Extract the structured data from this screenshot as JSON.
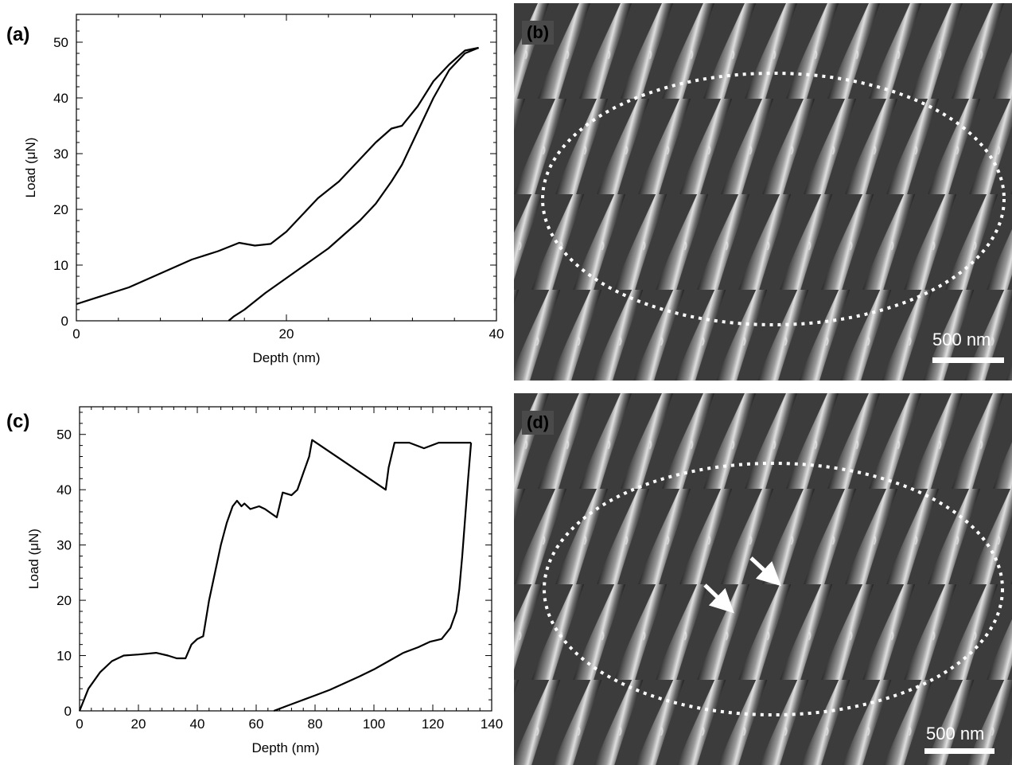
{
  "panels": {
    "a": "(a)",
    "b": "(b)",
    "c": "(c)",
    "d": "(d)"
  },
  "sem": {
    "b_scale": "500 nm",
    "d_scale": "500 nm"
  },
  "chart_data": [
    {
      "type": "line",
      "panel": "(a)",
      "xlabel": "Depth (nm)",
      "ylabel": "Load (μN)",
      "xlim": [
        0,
        40
      ],
      "ylim": [
        0,
        55
      ],
      "xticks": [
        0,
        20,
        40
      ],
      "yticks": [
        0,
        10,
        20,
        30,
        40,
        50
      ],
      "grid": false,
      "series": [
        {
          "x": [
            0,
            2,
            5,
            8,
            11,
            13.5,
            15.5,
            17,
            18.5,
            20,
            21.5,
            23,
            25,
            27,
            28.5,
            30,
            31,
            32.5,
            34,
            35.5,
            37,
            38.3
          ],
          "y": [
            3,
            4.2,
            6,
            8.5,
            11,
            12.5,
            14,
            13.5,
            13.8,
            16,
            19,
            22,
            25,
            29,
            32,
            34.5,
            35,
            38.5,
            43,
            46,
            48.5,
            49
          ]
        },
        {
          "x": [
            38.3,
            37,
            35.5,
            34,
            33,
            32,
            31,
            30,
            28.5,
            27,
            25.5,
            24,
            22.5,
            21,
            19.5,
            18,
            17,
            16,
            15,
            14.5
          ],
          "y": [
            49,
            48,
            45,
            40,
            36,
            32,
            28,
            25,
            21,
            18,
            15.5,
            13,
            11,
            9,
            7,
            5,
            3.5,
            2,
            0.8,
            0
          ]
        }
      ]
    },
    {
      "type": "line",
      "panel": "(c)",
      "xlabel": "Depth (nm)",
      "ylabel": "Load (μN)",
      "xlim": [
        0,
        140
      ],
      "ylim": [
        0,
        55
      ],
      "xticks": [
        0,
        20,
        40,
        60,
        80,
        100,
        120,
        140
      ],
      "yticks": [
        0,
        10,
        20,
        30,
        40,
        50
      ],
      "grid": false,
      "series": [
        {
          "x": [
            0,
            3,
            7,
            11,
            15,
            20,
            26,
            30,
            33,
            36,
            38,
            40,
            42,
            44,
            46,
            48,
            50,
            52,
            53.5,
            55,
            56,
            58,
            61,
            63,
            67,
            69,
            72,
            74,
            76,
            78,
            79,
            104,
            105,
            107,
            109,
            112,
            117,
            122,
            127,
            130,
            133
          ],
          "y": [
            0,
            4,
            7,
            9,
            10,
            10.2,
            10.5,
            10,
            9.5,
            9.5,
            12,
            13,
            13.5,
            20,
            25,
            30,
            34,
            37,
            38,
            37,
            37.5,
            36.5,
            37,
            36.5,
            35,
            39.5,
            39,
            40,
            43,
            46,
            49,
            40,
            44,
            48.5,
            48.5,
            48.5,
            47.5,
            48.5,
            48.5,
            48.5,
            48.5
          ]
        },
        {
          "x": [
            133,
            132,
            131,
            130,
            129,
            128,
            126,
            123,
            119,
            115,
            110,
            105,
            100,
            95,
            90,
            85,
            80,
            75,
            70,
            66
          ],
          "y": [
            48.5,
            42,
            35,
            28,
            22,
            18,
            15,
            13,
            12.5,
            11.5,
            10.5,
            9,
            7.5,
            6.2,
            5,
            3.8,
            2.8,
            1.8,
            0.8,
            0
          ]
        }
      ]
    }
  ]
}
